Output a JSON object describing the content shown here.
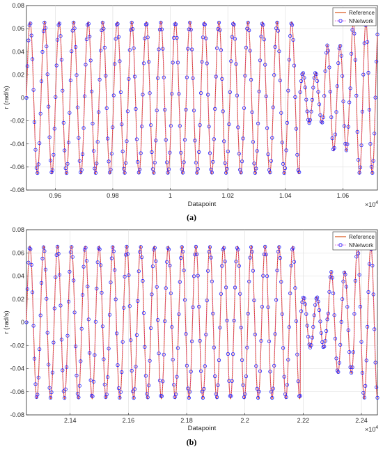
{
  "chart_data": [
    {
      "panel_label": "(a)",
      "type": "line",
      "xlabel": "Datapoint",
      "ylabel": "r (rad/s)",
      "x_multiplier": "×10^4",
      "xlim": [
        0.95,
        1.072
      ],
      "ylim": [
        -0.08,
        0.08
      ],
      "xticks": [
        "0.96",
        "0.98",
        "1",
        "1.02",
        "1.04",
        "1.06"
      ],
      "xtick_values": [
        0.96,
        0.98,
        1.0,
        1.02,
        1.04,
        1.06
      ],
      "yticks": [
        "-0.08",
        "-0.06",
        "-0.04",
        "-0.02",
        "0",
        "0.02",
        "0.04",
        "0.06",
        "0.08"
      ],
      "ytick_values": [
        -0.08,
        -0.06,
        -0.04,
        -0.02,
        0,
        0.02,
        0.04,
        0.06,
        0.08
      ],
      "grid": true,
      "legend_position": "top-right",
      "series": [
        {
          "name": "Reference",
          "color": "#d95319",
          "marker": "none",
          "style": "solid"
        },
        {
          "name": "NNetwork",
          "color": "#1f1fff",
          "marker": "circle",
          "style": "dotted",
          "marker_edge": "#1f1fff",
          "line_color": "#e060e0"
        }
      ],
      "signal_segments": [
        {
          "x_start": 0.95,
          "x_end": 1.045,
          "period": 0.00505,
          "amplitude": 0.066,
          "phase": 0.0
        },
        {
          "x_start": 1.045,
          "x_end": 1.0535,
          "period": 0.0044,
          "amplitude": 0.022,
          "phase": 0.0
        },
        {
          "x_start": 1.0535,
          "x_end": 1.0625,
          "period": 0.0044,
          "amplitude": 0.046,
          "phase": 0.0
        },
        {
          "x_start": 1.0625,
          "x_end": 1.072,
          "period": 0.0044,
          "amplitude": 0.066,
          "phase": 0.0
        }
      ]
    },
    {
      "panel_label": "(b)",
      "type": "line",
      "xlabel": "Datapoint",
      "ylabel": "r (rad/s)",
      "x_multiplier": "×10^4",
      "xlim": [
        2.125,
        2.2455
      ],
      "ylim": [
        -0.08,
        0.08
      ],
      "xticks": [
        "2.14",
        "2.16",
        "2.18",
        "2.2",
        "2.22",
        "2.24"
      ],
      "xtick_values": [
        2.14,
        2.16,
        2.18,
        2.2,
        2.22,
        2.24
      ],
      "yticks": [
        "-0.08",
        "-0.06",
        "-0.04",
        "-0.02",
        "0",
        "0.02",
        "0.04",
        "0.06",
        "0.08"
      ],
      "ytick_values": [
        -0.08,
        -0.06,
        -0.04,
        -0.02,
        0,
        0.02,
        0.04,
        0.06,
        0.08
      ],
      "grid": true,
      "legend_position": "top-right",
      "series": [
        {
          "name": "Reference",
          "color": "#d95319",
          "marker": "none",
          "style": "solid"
        },
        {
          "name": "NNetwork",
          "color": "#1f1fff",
          "marker": "circle",
          "style": "dotted",
          "marker_edge": "#1f1fff",
          "line_color": "#e060e0"
        }
      ],
      "signal_segments": [
        {
          "x_start": 2.125,
          "x_end": 2.219,
          "period": 0.00475,
          "amplitude": 0.066,
          "phase": 0.0
        },
        {
          "x_start": 2.219,
          "x_end": 2.2285,
          "period": 0.0046,
          "amplitude": 0.022,
          "phase": 0.0
        },
        {
          "x_start": 2.2285,
          "x_end": 2.2375,
          "period": 0.0046,
          "amplitude": 0.044,
          "phase": 0.0
        },
        {
          "x_start": 2.2375,
          "x_end": 2.2455,
          "period": 0.0046,
          "amplitude": 0.066,
          "phase": 0.0
        }
      ]
    }
  ]
}
